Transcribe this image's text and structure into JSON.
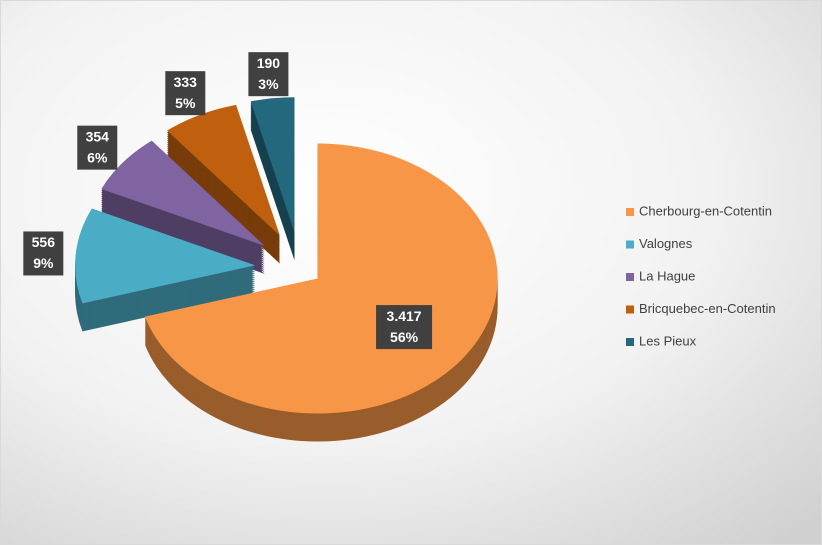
{
  "chart_data": {
    "type": "pie",
    "categories": [
      "Cherbourg-en-Cotentin",
      "Valognes",
      "La Hague",
      "Bricquebec-en-Cotentin",
      "Les Pieux"
    ],
    "values": [
      3417,
      556,
      354,
      333,
      190
    ],
    "value_labels": [
      "3.417",
      "556",
      "354",
      "333",
      "190"
    ],
    "percent_labels": [
      "56%",
      "9%",
      "6%",
      "5%",
      "3%"
    ],
    "colors": [
      "#f79646",
      "#4bacc6",
      "#8064a2",
      "#c0600e",
      "#24687e"
    ],
    "legend": "right"
  }
}
